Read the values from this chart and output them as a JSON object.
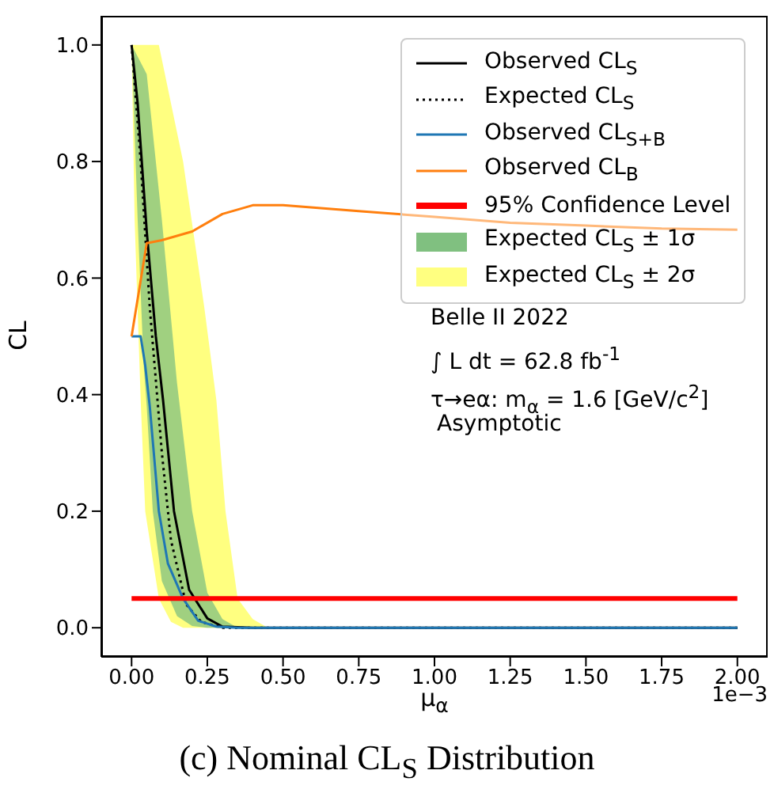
{
  "chart_data": {
    "type": "line",
    "title": "(c) Nominal CL$_{S}$ Distribution",
    "xlabel": "μ$_{α}$",
    "ylabel": "CL",
    "xlim": [
      -0.1,
      2.1
    ],
    "ylim": [
      -0.05,
      1.05
    ],
    "xticks": [
      {
        "value": 0,
        "label": "0.00"
      },
      0.25,
      {
        "value": 0.5,
        "label": "0.50"
      },
      0.75,
      {
        "value": 1,
        "label": "1.00"
      },
      1.25,
      {
        "value": 1.5,
        "label": "1.50"
      },
      1.75,
      {
        "value": 2,
        "label": "2.00"
      }
    ],
    "yticks": [
      {
        "value": 0,
        "label": "0.0"
      },
      0.2,
      0.4,
      0.6,
      0.8,
      {
        "value": 1,
        "label": "1.0"
      }
    ],
    "grid": false,
    "legend": "top right",
    "marker": "none",
    "series": [
      {
        "name": "Observed CL$_{S}$",
        "color": "#000000",
        "line_style": "solid",
        "x": [
          0,
          0.02,
          0.05,
          0.08,
          0.104,
          0.14,
          0.19,
          0.25,
          0.3,
          0.4,
          2
        ],
        "values": [
          1.0,
          0.9,
          0.68,
          0.5,
          0.39,
          0.2,
          0.065,
          0.016,
          0.002,
          0,
          0
        ]
      },
      {
        "name": "Expected CL$_{S}$",
        "color": "#000000",
        "line_style": "dotted",
        "x": [
          0,
          0.03,
          0.06,
          0.1,
          0.13,
          0.18,
          0.23,
          0.3,
          2
        ],
        "values": [
          1.0,
          0.8,
          0.55,
          0.3,
          0.15,
          0.04,
          0.01,
          0,
          0
        ]
      },
      {
        "name": "Observed CL$_{S+B}$",
        "color": "#1f77b4",
        "line_style": "solid",
        "x": [
          0,
          0.03,
          0.045,
          0.06,
          0.09,
          0.12,
          0.17,
          0.22,
          0.28,
          0.35,
          2
        ],
        "values": [
          0.5,
          0.5,
          0.45,
          0.38,
          0.2,
          0.11,
          0.05,
          0.012,
          0.002,
          0,
          0
        ]
      },
      {
        "name": "Observed CL$_{B}$",
        "color": "#ff7f0e",
        "line_style": "solid",
        "x": [
          0,
          0.05,
          0.1,
          0.2,
          0.3,
          0.4,
          0.5,
          0.75,
          1,
          1.25,
          1.5,
          1.75,
          2
        ],
        "values": [
          0.5,
          0.66,
          0.665,
          0.68,
          0.71,
          0.725,
          0.725,
          0.715,
          0.705,
          0.695,
          0.69,
          0.685,
          0.683
        ]
      },
      {
        "name": "95% Confidence Level",
        "color": "#ff0000",
        "line_style": "solid",
        "x": [
          0,
          2
        ],
        "values": [
          0.05,
          0.05
        ]
      },
      {
        "name": "Expected CL$_{S}$ ± 1σ",
        "type": "area",
        "color": "#80c080",
        "x": [
          0,
          0.02,
          0.04,
          0.05,
          0.07,
          0.1,
          0.15,
          0.2,
          0.25,
          0.3,
          0.35
        ],
        "lower": [
          1.0,
          0.7,
          0.45,
          0.38,
          0.2,
          0.08,
          0.02,
          0.003,
          0,
          0,
          0
        ],
        "upper": [
          1.0,
          0.98,
          0.96,
          0.95,
          0.85,
          0.7,
          0.42,
          0.2,
          0.06,
          0.015,
          0
        ],
        "values": [
          null,
          null,
          null,
          null,
          null,
          null,
          null,
          null,
          null,
          null,
          null
        ]
      },
      {
        "name": "Expected CL$_{S}$ ± 2σ",
        "type": "area",
        "color": "#ffff80",
        "x": [
          0,
          0.01,
          0.03,
          0.045,
          0.09,
          0.13,
          0.17,
          0.24,
          0.28,
          0.31,
          0.35,
          0.4,
          0.45
        ],
        "lower": [
          1.0,
          0.7,
          0.39,
          0.2,
          0.05,
          0.01,
          0,
          0,
          0,
          0,
          0,
          0,
          0
        ],
        "upper": [
          1.0,
          1.0,
          1.0,
          1.0,
          1.0,
          0.9,
          0.8,
          0.55,
          0.39,
          0.2,
          0.05,
          0.015,
          0
        ],
        "values": [
          null,
          null,
          null,
          null,
          null,
          null,
          null,
          null,
          null,
          null,
          null,
          null,
          null
        ]
      }
    ],
    "annotations": [
      "Belle II 2022",
      "∫ L dt = 62.8 fb$^{-1}$",
      "τ→eα: m$_{α}$ = 1.6 [GeV/c$^{2}$]",
      "Asymptotic",
      "1e−3"
    ]
  }
}
